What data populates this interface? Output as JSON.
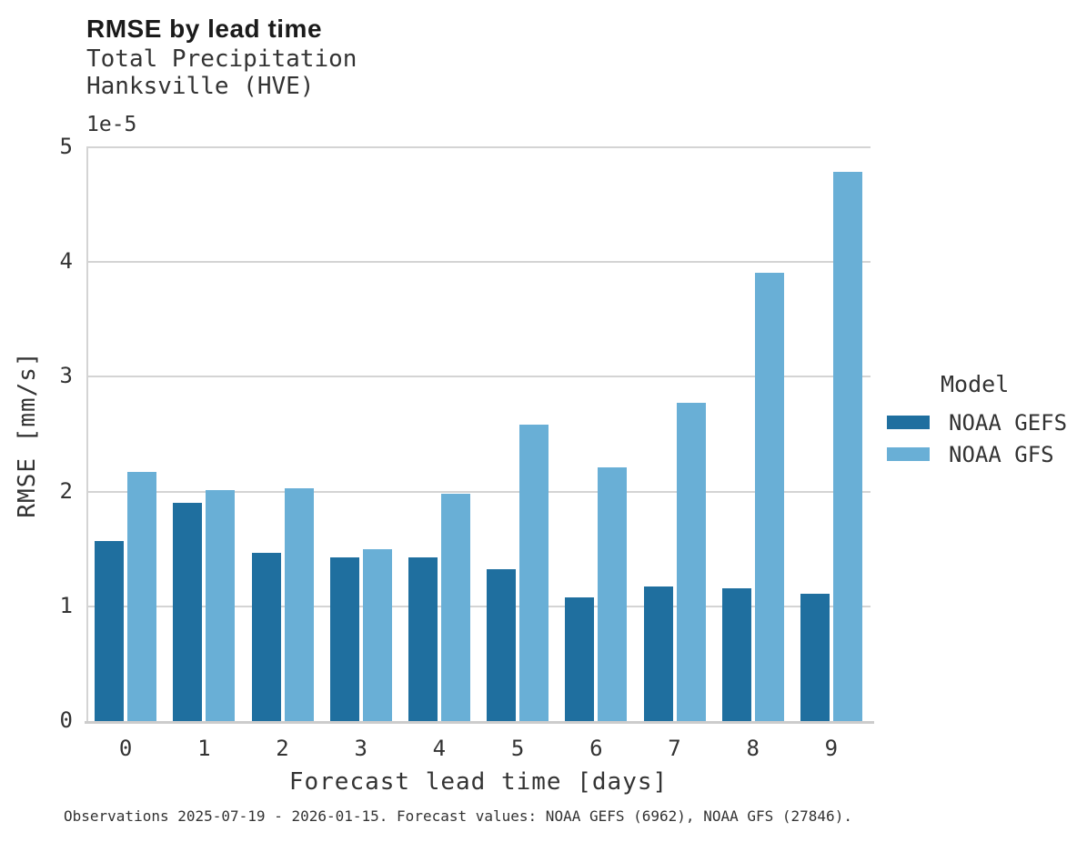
{
  "header": {
    "title": "RMSE by lead time",
    "subtitle1": "Total Precipitation",
    "subtitle2": "Hanksville (HVE)"
  },
  "footer": {
    "text": "Observations 2025-07-19 - 2026-01-15. Forecast values: NOAA GEFS (6962), NOAA GFS (27846)."
  },
  "colors": {
    "gefs_bar": "#1f6f9f",
    "gfs_bar": "#69afd6",
    "gridline": "#d4d4d4",
    "spine": "#cccccc",
    "text": "#333333"
  },
  "chart_data": {
    "type": "bar",
    "title": "RMSE by lead time",
    "subtitle": [
      "Total Precipitation",
      "Hanksville (HVE)"
    ],
    "categories": [
      "0",
      "1",
      "2",
      "3",
      "4",
      "5",
      "6",
      "7",
      "8",
      "9"
    ],
    "series": [
      {
        "name": "NOAA GEFS",
        "color": "#1f6f9f",
        "values": [
          1.57,
          1.9,
          1.47,
          1.43,
          1.43,
          1.32,
          1.08,
          1.17,
          1.16,
          1.11
        ]
      },
      {
        "name": "NOAA GFS",
        "color": "#69afd6",
        "values": [
          2.17,
          2.01,
          2.03,
          1.5,
          1.98,
          2.58,
          2.21,
          2.77,
          3.91,
          4.79
        ]
      }
    ],
    "values_scale": "1e-5",
    "offset_label": "1e-5",
    "xlabel": "Forecast lead time [days]",
    "ylabel": "RMSE [mm/s]",
    "ylim": [
      0,
      5
    ],
    "yticks": [
      0,
      1,
      2,
      3,
      4,
      5
    ],
    "grid": true,
    "legend_title": "Model",
    "legend_position": "right"
  }
}
